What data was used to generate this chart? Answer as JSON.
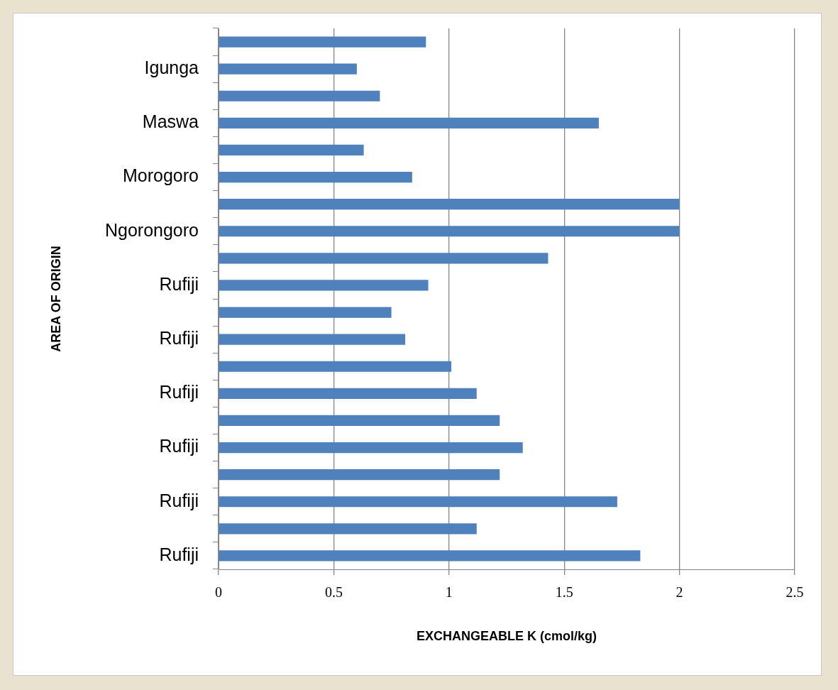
{
  "chart_data": {
    "type": "bar",
    "orientation": "horizontal",
    "xlabel": "EXCHANGEABLE K (cmol/kg)",
    "ylabel": "AREA OF ORIGIN",
    "categories": [
      null,
      "Igunga",
      null,
      "Maswa",
      null,
      "Morogoro",
      null,
      "Ngorongoro",
      null,
      "Rufiji",
      null,
      "Rufiji",
      null,
      "Rufiji",
      null,
      "Rufiji",
      null,
      "Rufiji",
      null,
      "Rufiji"
    ],
    "values": [
      0.9,
      0.6,
      0.7,
      1.65,
      0.63,
      0.84,
      2.0,
      2.0,
      1.43,
      0.91,
      0.75,
      0.81,
      1.01,
      1.12,
      1.22,
      1.32,
      1.22,
      1.73,
      1.12,
      1.83
    ],
    "color": "#4f81bd",
    "xlim": [
      0,
      2.5
    ],
    "xticks": [
      0,
      0.5,
      1,
      1.5,
      2,
      2.5
    ],
    "grid": "x"
  }
}
